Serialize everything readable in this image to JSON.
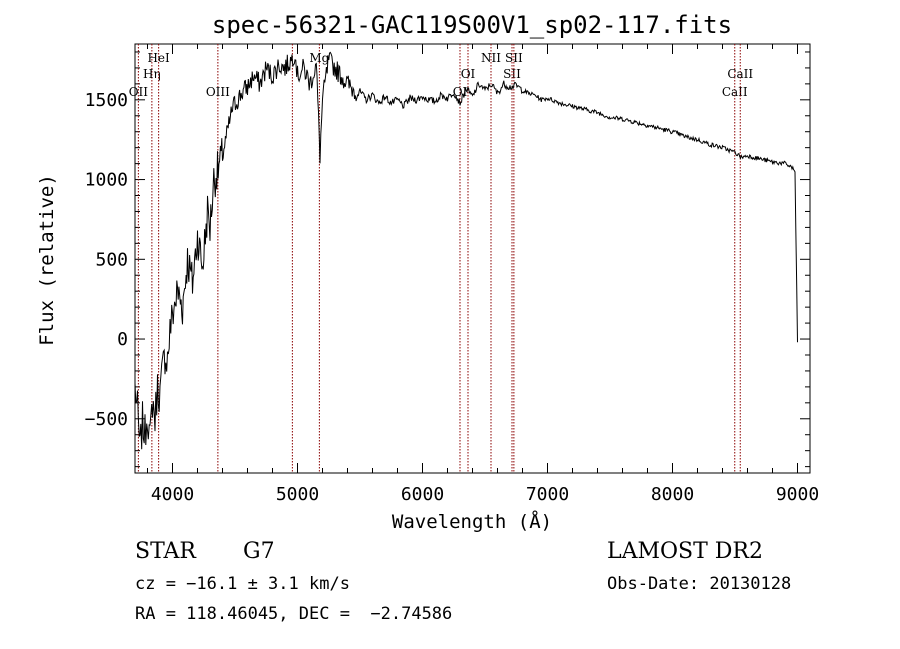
{
  "chart_data": {
    "type": "line",
    "title": "spec-56321-GAC119S00V1_sp02-117.fits",
    "xlabel": "Wavelength (Å)",
    "ylabel": "Flux (relative)",
    "xlim": [
      3700,
      9100
    ],
    "ylim": [
      -840,
      1850
    ],
    "xticks": [
      4000,
      5000,
      6000,
      7000,
      8000,
      9000
    ],
    "yticks": [
      -500,
      0,
      500,
      1000,
      1500
    ],
    "line_color": "#000000",
    "marker_color": "#8b0000",
    "series": [
      {
        "x": [
          3700,
          3720,
          3740,
          3760,
          3780,
          3800,
          3820,
          3840,
          3860,
          3880,
          3900,
          3920,
          3940,
          3960,
          3980,
          4000,
          4040,
          4080,
          4120,
          4160,
          4200,
          4240,
          4280,
          4300,
          4330,
          4360,
          4400,
          4440,
          4480,
          4520,
          4560,
          4600,
          4650,
          4700,
          4750,
          4800,
          4850,
          4900,
          4950,
          4980,
          5000,
          5050,
          5100,
          5150,
          5180,
          5200,
          5250,
          5300,
          5350,
          5400,
          5450,
          5500,
          5550,
          5600,
          5650,
          5700,
          5750,
          5800,
          5850,
          5900,
          5950,
          6000,
          6050,
          6100,
          6150,
          6200,
          6250,
          6300,
          6350,
          6400,
          6450,
          6500,
          6550,
          6600,
          6650,
          6700,
          6750,
          6800,
          6850,
          6900,
          6950,
          7000,
          7100,
          7200,
          7300,
          7400,
          7500,
          7600,
          7700,
          7800,
          7900,
          8000,
          8100,
          8200,
          8300,
          8400,
          8500,
          8550,
          8600,
          8700,
          8800,
          8900,
          8950,
          8980,
          9000
        ],
        "y": [
          -300,
          -450,
          -700,
          -520,
          -600,
          -450,
          -650,
          -380,
          -500,
          -300,
          -350,
          -200,
          -100,
          -120,
          50,
          150,
          300,
          200,
          500,
          350,
          650,
          450,
          800,
          700,
          1000,
          1050,
          1150,
          1300,
          1450,
          1500,
          1550,
          1580,
          1650,
          1600,
          1700,
          1650,
          1720,
          1700,
          1750,
          1800,
          1650,
          1700,
          1600,
          1720,
          1150,
          1500,
          1750,
          1700,
          1650,
          1600,
          1560,
          1550,
          1500,
          1530,
          1480,
          1520,
          1480,
          1500,
          1460,
          1510,
          1500,
          1520,
          1500,
          1490,
          1530,
          1510,
          1550,
          1480,
          1570,
          1520,
          1600,
          1560,
          1600,
          1540,
          1600,
          1580,
          1590,
          1560,
          1540,
          1530,
          1500,
          1510,
          1480,
          1460,
          1440,
          1420,
          1390,
          1380,
          1360,
          1340,
          1320,
          1300,
          1270,
          1250,
          1220,
          1200,
          1170,
          1140,
          1150,
          1130,
          1110,
          1100,
          1080,
          1050,
          -20
        ]
      }
    ],
    "line_markers": [
      {
        "label": "OII",
        "x": 3727,
        "row": "low"
      },
      {
        "label": "Hη",
        "x": 3835,
        "row": "mid"
      },
      {
        "label": "HeI",
        "x": 3889,
        "row": "high"
      },
      {
        "label": "OIII",
        "x": 4363,
        "row": "low"
      },
      {
        "label": "",
        "x": 4959,
        "row": "none"
      },
      {
        "label": "Mg",
        "x": 5175,
        "row": "high"
      },
      {
        "label": "OI",
        "x": 6300,
        "row": "low"
      },
      {
        "label": "OI",
        "x": 6364,
        "row": "mid"
      },
      {
        "label": "NII",
        "x": 6548,
        "row": "high"
      },
      {
        "label": "SII",
        "x": 6716,
        "row": "mid"
      },
      {
        "label": "SII",
        "x": 6731,
        "row": "high"
      },
      {
        "label": "CaII",
        "x": 8498,
        "row": "low"
      },
      {
        "label": "CaII",
        "x": 8542,
        "row": "mid"
      }
    ]
  },
  "info": {
    "object_class": "STAR",
    "subclass": "G7",
    "survey": "LAMOST DR2",
    "redshift_line": "cz = −16.1 ± 3.1 km/s",
    "obs_date": "Obs-Date: 20130128",
    "coords_line": "RA = 118.46045, DEC =  −2.74586"
  }
}
